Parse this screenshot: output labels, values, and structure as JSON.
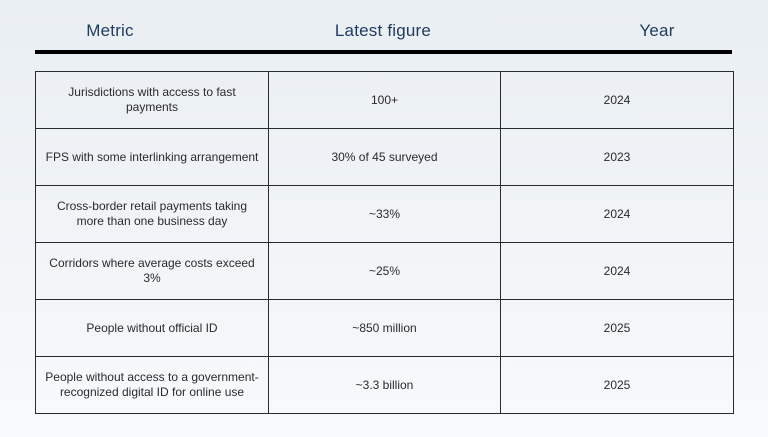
{
  "header": {
    "metric": "Metric",
    "latest_figure": "Latest figure",
    "year": "Year"
  },
  "rows": [
    {
      "metric": "Jurisdictions with access to fast payments",
      "figure": "100+",
      "year": "2024"
    },
    {
      "metric": "FPS with some interlinking arrangement",
      "figure": "30% of 45 surveyed",
      "year": "2023"
    },
    {
      "metric": "Cross-border retail payments taking more than one business day",
      "figure": "~33%",
      "year": "2024"
    },
    {
      "metric": "Corridors where average costs exceed 3%",
      "figure": "~25%",
      "year": "2024"
    },
    {
      "metric": "People without official ID",
      "figure": "~850 million",
      "year": "2025"
    },
    {
      "metric": "People without access to a government-recognized digital ID for online use",
      "figure": "~3.3 billion",
      "year": "2025"
    }
  ],
  "colors": {
    "header_text": "#1f3a5f",
    "rule": "#000000",
    "cell_text": "#2a2a2a",
    "border": "#2b2b2b"
  }
}
